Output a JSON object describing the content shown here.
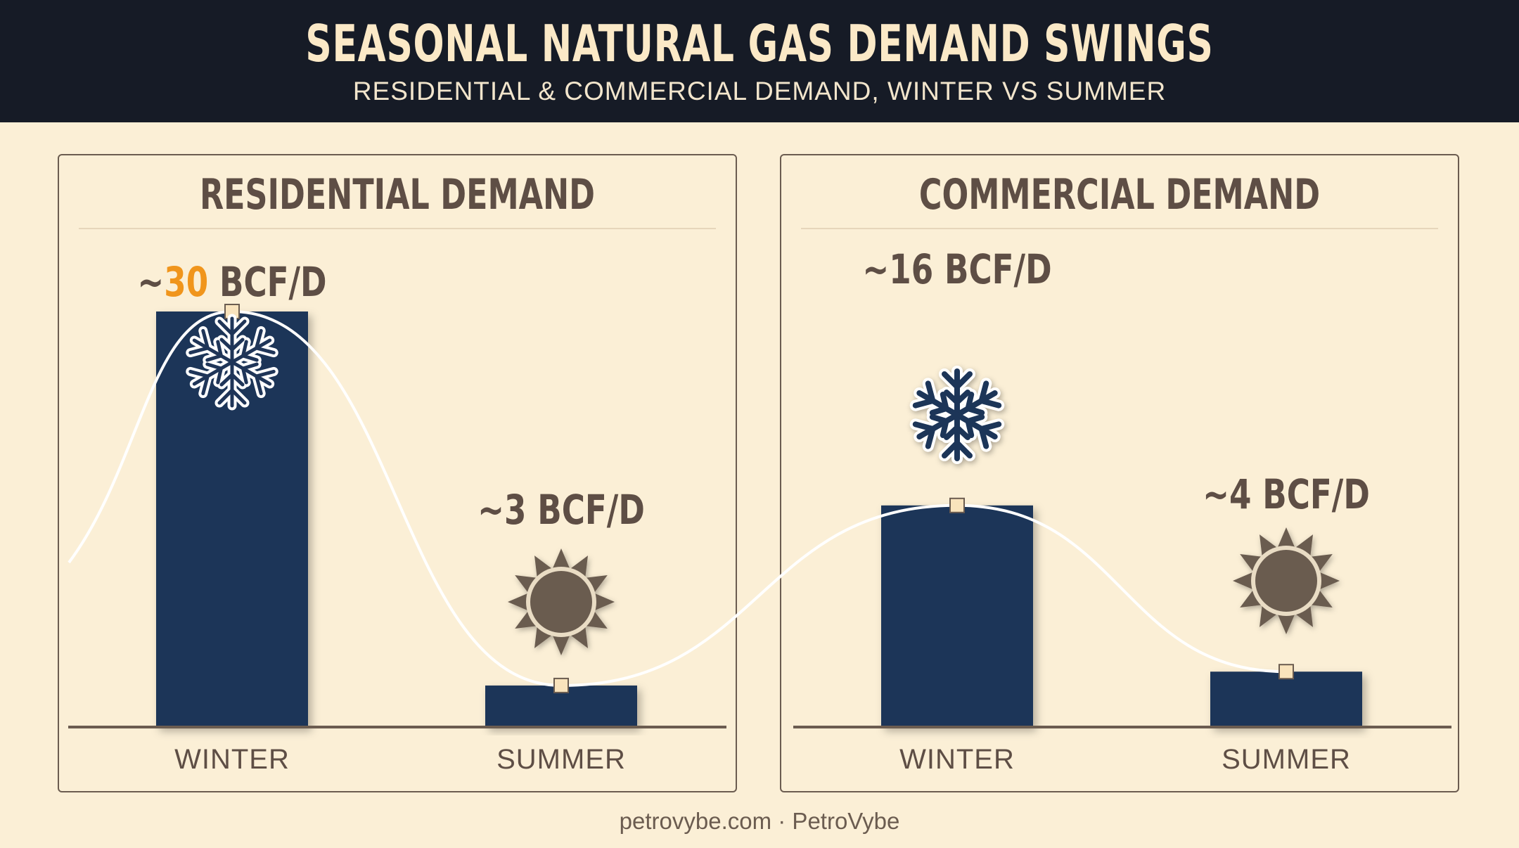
{
  "header": {
    "title": "SEASONAL NATURAL GAS DEMAND SWINGS",
    "subtitle": "RESIDENTIAL & COMMERCIAL DEMAND, WINTER VS SUMMER"
  },
  "footer": "petrovybe.com · PetroVybe",
  "colors": {
    "header_bg": "#161b26",
    "background": "#fbefd6",
    "bar": "#1f3558",
    "text": "#5e4e45",
    "highlight": "#f0951c",
    "curve": "#ffffff",
    "sun": "#6b5c50"
  },
  "chart_data": [
    {
      "type": "bar",
      "title": "RESIDENTIAL DEMAND",
      "categories": [
        "WINTER",
        "SUMMER"
      ],
      "values": [
        30,
        3
      ],
      "unit": "BCF/D",
      "labels": [
        {
          "prefix": "~",
          "number": "30",
          "suffix": " BCF/D",
          "highlight": true
        },
        {
          "prefix": "~",
          "number": "3",
          "suffix": " BCF/D",
          "highlight": false
        }
      ],
      "icons": [
        "snowflake-icon",
        "sun-icon"
      ]
    },
    {
      "type": "bar",
      "title": "COMMERCIAL DEMAND",
      "categories": [
        "WINTER",
        "SUMMER"
      ],
      "values": [
        16,
        4
      ],
      "unit": "BCF/D",
      "labels": [
        {
          "prefix": "~",
          "number": "16",
          "suffix": " BCF/D",
          "highlight": false
        },
        {
          "prefix": "~",
          "number": "4",
          "suffix": " BCF/D",
          "highlight": false
        }
      ],
      "icons": [
        "snowflake-icon",
        "sun-icon"
      ]
    }
  ]
}
